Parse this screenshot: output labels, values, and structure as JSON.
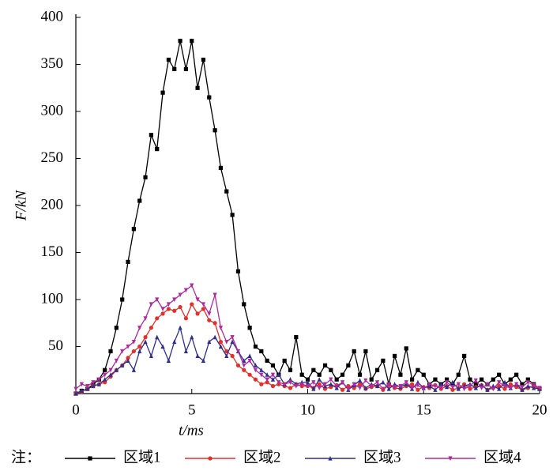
{
  "chart_data": {
    "type": "line",
    "xlabel": "t/ms",
    "ylabel": "F/kN",
    "legend_note": "注：",
    "xlim": [
      0,
      20
    ],
    "xticks": [
      0,
      5,
      10,
      15,
      20
    ],
    "ylim": [
      0,
      400
    ],
    "yticks": [
      50,
      100,
      150,
      200,
      250,
      300,
      350,
      400
    ],
    "legend": "bottom",
    "x": [
      0,
      0.25,
      0.5,
      0.75,
      1,
      1.25,
      1.5,
      1.75,
      2,
      2.25,
      2.5,
      2.75,
      3,
      3.25,
      3.5,
      3.75,
      4,
      4.25,
      4.5,
      4.75,
      5,
      5.25,
      5.5,
      5.75,
      6,
      6.25,
      6.5,
      6.75,
      7,
      7.25,
      7.5,
      7.75,
      8,
      8.25,
      8.5,
      8.75,
      9,
      9.25,
      9.5,
      9.75,
      10,
      10.25,
      10.5,
      10.75,
      11,
      11.25,
      11.5,
      11.75,
      12,
      12.25,
      12.5,
      12.75,
      13,
      13.25,
      13.5,
      13.75,
      14,
      14.25,
      14.5,
      14.75,
      15,
      15.25,
      15.5,
      15.75,
      16,
      16.25,
      16.5,
      16.75,
      17,
      17.25,
      17.5,
      17.75,
      18,
      18.25,
      18.5,
      18.75,
      19,
      19.25,
      19.5,
      19.75,
      20
    ],
    "series": [
      {
        "name": "区域1",
        "color": "#000000",
        "marker": "square",
        "values": [
          0,
          3,
          5,
          10,
          15,
          25,
          45,
          70,
          100,
          140,
          175,
          205,
          230,
          275,
          260,
          320,
          355,
          345,
          375,
          345,
          375,
          325,
          355,
          315,
          280,
          240,
          215,
          190,
          130,
          95,
          70,
          50,
          45,
          35,
          30,
          20,
          35,
          25,
          60,
          20,
          15,
          25,
          20,
          30,
          25,
          15,
          20,
          30,
          45,
          20,
          45,
          15,
          25,
          35,
          10,
          40,
          20,
          48,
          15,
          25,
          20,
          10,
          15,
          10,
          15,
          10,
          20,
          40,
          15,
          10,
          15,
          10,
          15,
          20,
          10,
          15,
          20,
          10,
          15,
          10,
          5
        ]
      },
      {
        "name": "区域2",
        "color": "#e3302a",
        "marker": "circle",
        "values": [
          0,
          2,
          5,
          8,
          10,
          12,
          18,
          25,
          30,
          38,
          45,
          50,
          60,
          70,
          80,
          85,
          90,
          88,
          92,
          80,
          95,
          85,
          90,
          78,
          75,
          55,
          45,
          40,
          30,
          25,
          20,
          15,
          10,
          12,
          8,
          10,
          8,
          6,
          10,
          8,
          8,
          6,
          10,
          5,
          7,
          9,
          4,
          8,
          6,
          10,
          5,
          7,
          8,
          4,
          9,
          6,
          5,
          8,
          10,
          4,
          7,
          6,
          9,
          5,
          8,
          4,
          6,
          10,
          5,
          7,
          9,
          4,
          6,
          8,
          5,
          10,
          7,
          4,
          6,
          8,
          5
        ]
      },
      {
        "name": "区域3",
        "color": "#2e2f8e",
        "marker": "triangle-up",
        "values": [
          0,
          3,
          5,
          8,
          10,
          15,
          20,
          25,
          30,
          35,
          25,
          45,
          55,
          40,
          60,
          50,
          35,
          55,
          70,
          45,
          60,
          40,
          35,
          55,
          60,
          50,
          40,
          55,
          45,
          35,
          40,
          30,
          25,
          20,
          15,
          20,
          10,
          15,
          10,
          12,
          12,
          5,
          15,
          8,
          10,
          6,
          12,
          4,
          9,
          14,
          6,
          10,
          8,
          12,
          5,
          10,
          7,
          10,
          5,
          12,
          6,
          8,
          4,
          10,
          7,
          12,
          5,
          8,
          10,
          6,
          9,
          4,
          8,
          5,
          12,
          6,
          10,
          4,
          8,
          6,
          5
        ]
      },
      {
        "name": "区域4",
        "color": "#b02a9e",
        "marker": "triangle-down",
        "values": [
          5,
          10,
          8,
          12,
          15,
          20,
          25,
          35,
          45,
          50,
          55,
          70,
          80,
          95,
          100,
          90,
          95,
          100,
          105,
          110,
          115,
          100,
          95,
          85,
          105,
          70,
          55,
          60,
          45,
          30,
          35,
          25,
          20,
          15,
          20,
          12,
          10,
          12,
          8,
          10,
          8,
          12,
          6,
          10,
          15,
          8,
          12,
          5,
          10,
          6,
          14,
          8,
          12,
          5,
          10,
          7,
          8,
          12,
          6,
          9,
          5,
          10,
          8,
          6,
          12,
          7,
          10,
          5,
          8,
          14,
          6,
          10,
          5,
          12,
          8,
          6,
          10,
          7,
          12,
          9,
          6
        ]
      }
    ]
  }
}
